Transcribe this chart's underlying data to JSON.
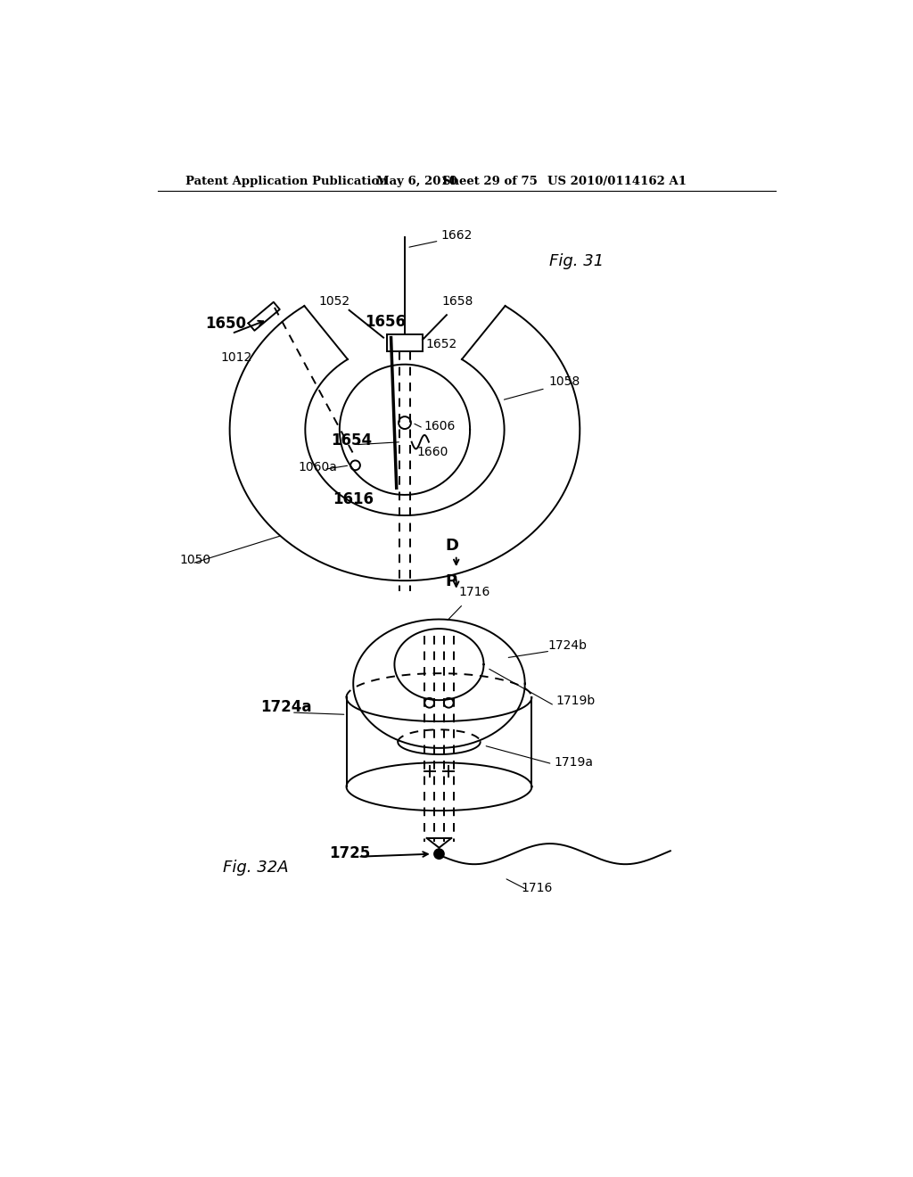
{
  "bg_color": "#ffffff",
  "header_text": "Patent Application Publication",
  "header_date": "May 6, 2010",
  "header_sheet": "Sheet 29 of 75",
  "header_patent": "US 2010/0114162 A1",
  "fig31_label": "Fig. 31",
  "fig32a_label": "Fig. 32A",
  "line_color": "#000000",
  "lw": 1.4
}
